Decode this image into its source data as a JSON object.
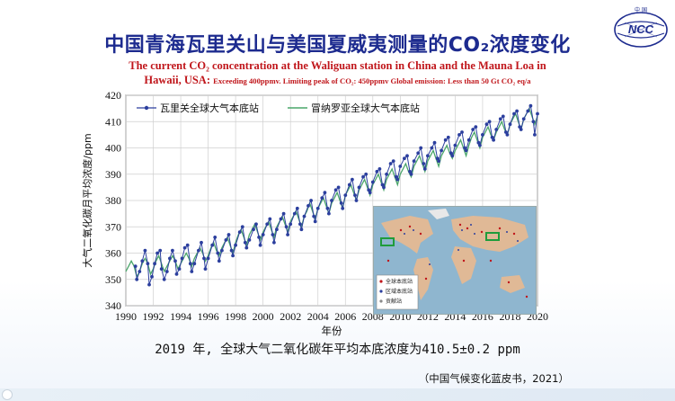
{
  "slide": {
    "title": "中国青海瓦里关山与美国夏威夷测量的CO₂浓度变化",
    "subtitle_line1": "The current  CO₂  concentration at the Waliguan station in China and the Mauna Loa in",
    "subtitle_line2_main": "Hawaii, USA: ",
    "subtitle_line2_small": "Exceeding 400ppmv. Limiting peak of CO₂: 450ppmv Global emission: Less than 50 Gt CO₂ eq/a",
    "caption": "2019 年, 全球大气二氧化碳年平均本底浓度为410.5±0.2 ppm",
    "source": "（中国气候变化蓝皮书，2021）",
    "logo_text": "NCC",
    "logo_top_text": "中  国",
    "colors": {
      "title": "#1d2b8f",
      "subtitle": "#c0161b",
      "waliguan": "#2c3f9e",
      "maunaloa": "#4aa56a"
    }
  },
  "map_inset": {
    "legend": [
      "全球本底站",
      "区域本底站",
      "贡献站"
    ]
  },
  "chart_data": {
    "type": "line",
    "xlabel": "年份",
    "ylabel": "大气二氧化碳月平均浓度/ppm",
    "xlim": [
      1990,
      2020
    ],
    "ylim": [
      340,
      420
    ],
    "xticks": [
      "1990",
      "1992",
      "1994",
      "1996",
      "1998",
      "2000",
      "2002",
      "2004",
      "2006",
      "2008",
      "2010",
      "2012",
      "2014",
      "2016",
      "2018",
      "2020"
    ],
    "yticks": [
      "340",
      "350",
      "360",
      "370",
      "380",
      "390",
      "400",
      "410",
      "420"
    ],
    "grid": true,
    "legend_position": "top-left",
    "series": [
      {
        "name": "瓦里关全球大气本底站",
        "style": "line-with-dots",
        "x": [
          1990.7,
          1990.8,
          1991.0,
          1991.2,
          1991.4,
          1991.6,
          1991.7,
          1991.9,
          1992.1,
          1992.3,
          1992.5,
          1992.6,
          1992.8,
          1993.0,
          1993.2,
          1993.4,
          1993.6,
          1993.7,
          1993.9,
          1994.1,
          1994.3,
          1994.5,
          1994.7,
          1994.8,
          1995.0,
          1995.3,
          1995.5,
          1995.7,
          1995.8,
          1996.0,
          1996.3,
          1996.5,
          1996.7,
          1996.8,
          1997.0,
          1997.3,
          1997.5,
          1997.7,
          1997.8,
          1998.0,
          1998.3,
          1998.5,
          1998.7,
          1998.8,
          1999.0,
          1999.3,
          1999.5,
          1999.7,
          1999.8,
          2000.0,
          2000.3,
          2000.5,
          2000.7,
          2000.8,
          2001.0,
          2001.3,
          2001.5,
          2001.7,
          2001.8,
          2002.0,
          2002.3,
          2002.5,
          2002.7,
          2002.8,
          2003.0,
          2003.3,
          2003.5,
          2003.7,
          2003.8,
          2004.0,
          2004.3,
          2004.5,
          2004.7,
          2004.8,
          2005.0,
          2005.3,
          2005.5,
          2005.7,
          2005.8,
          2006.0,
          2006.3,
          2006.5,
          2006.7,
          2006.8,
          2007.0,
          2007.3,
          2007.5,
          2007.7,
          2007.8,
          2008.0,
          2008.3,
          2008.5,
          2008.7,
          2008.8,
          2009.0,
          2009.3,
          2009.5,
          2009.7,
          2009.8,
          2010.0,
          2010.3,
          2010.5,
          2010.7,
          2010.8,
          2011.0,
          2011.3,
          2011.5,
          2011.7,
          2011.8,
          2012.0,
          2012.3,
          2012.5,
          2012.7,
          2012.8,
          2013.0,
          2013.3,
          2013.5,
          2013.7,
          2013.8,
          2014.0,
          2014.3,
          2014.5,
          2014.7,
          2014.8,
          2015.0,
          2015.3,
          2015.5,
          2015.7,
          2015.8,
          2016.0,
          2016.3,
          2016.5,
          2016.7,
          2016.8,
          2017.0,
          2017.3,
          2017.5,
          2017.7,
          2017.8,
          2018.0,
          2018.3,
          2018.5,
          2018.7,
          2018.8,
          2019.0,
          2019.3,
          2019.5,
          2019.7,
          2019.8,
          2020.0
        ],
        "y": [
          355,
          350,
          353,
          357,
          361,
          356,
          348,
          351,
          356,
          360,
          361,
          354,
          350,
          353,
          358,
          361,
          357,
          352,
          354,
          358,
          362,
          363,
          356,
          353,
          356,
          361,
          364,
          358,
          354,
          358,
          363,
          366,
          360,
          357,
          361,
          365,
          367,
          361,
          359,
          363,
          368,
          370,
          364,
          362,
          365,
          369,
          371,
          366,
          363,
          367,
          371,
          373,
          367,
          364,
          369,
          373,
          375,
          370,
          367,
          371,
          375,
          377,
          371,
          369,
          374,
          378,
          380,
          374,
          372,
          377,
          381,
          383,
          377,
          375,
          380,
          384,
          385,
          379,
          377,
          382,
          386,
          388,
          382,
          380,
          385,
          389,
          390,
          384,
          383,
          387,
          391,
          392,
          386,
          385,
          390,
          394,
          395,
          389,
          388,
          393,
          396,
          397,
          391,
          390,
          395,
          398,
          400,
          394,
          392,
          397,
          400,
          402,
          396,
          395,
          399,
          403,
          404,
          398,
          397,
          401,
          405,
          406,
          400,
          399,
          403,
          407,
          408,
          402,
          401,
          405,
          409,
          410,
          404,
          403,
          407,
          411,
          412,
          406,
          405,
          409,
          413,
          414,
          408,
          407,
          411,
          414,
          416,
          410,
          405,
          413
        ]
      },
      {
        "name": "冒纳罗亚全球大气本底站",
        "style": "line",
        "x": [
          1990.0,
          1990.2,
          1990.4,
          1990.6,
          1990.8,
          1991.0,
          1991.2,
          1991.4,
          1991.6,
          1991.8,
          1992.0,
          1992.2,
          1992.4,
          1992.6,
          1992.8,
          1993.0,
          1993.2,
          1993.4,
          1993.6,
          1993.8,
          1994.0,
          1994.2,
          1994.4,
          1994.6,
          1994.8,
          1995.0,
          1995.2,
          1995.4,
          1995.6,
          1995.8,
          1996.0,
          1996.2,
          1996.4,
          1996.6,
          1996.8,
          1997.0,
          1997.2,
          1997.4,
          1997.6,
          1997.8,
          1998.0,
          1998.2,
          1998.4,
          1998.6,
          1998.8,
          1999.0,
          1999.2,
          1999.4,
          1999.6,
          1999.8,
          2000.0,
          2000.2,
          2000.4,
          2000.6,
          2000.8,
          2001.0,
          2001.2,
          2001.4,
          2001.6,
          2001.8,
          2002.0,
          2002.2,
          2002.4,
          2002.6,
          2002.8,
          2003.0,
          2003.2,
          2003.4,
          2003.6,
          2003.8,
          2004.0,
          2004.2,
          2004.4,
          2004.6,
          2004.8,
          2005.0,
          2005.2,
          2005.4,
          2005.6,
          2005.8,
          2006.0,
          2006.2,
          2006.4,
          2006.6,
          2006.8,
          2007.0,
          2007.2,
          2007.4,
          2007.6,
          2007.8,
          2008.0,
          2008.2,
          2008.4,
          2008.6,
          2008.8,
          2009.0,
          2009.2,
          2009.4,
          2009.6,
          2009.8,
          2010.0,
          2010.2,
          2010.4,
          2010.6,
          2010.8,
          2011.0,
          2011.2,
          2011.4,
          2011.6,
          2011.8,
          2012.0,
          2012.2,
          2012.4,
          2012.6,
          2012.8,
          2013.0,
          2013.2,
          2013.4,
          2013.6,
          2013.8,
          2014.0,
          2014.2,
          2014.4,
          2014.6,
          2014.8,
          2015.0,
          2015.2,
          2015.4,
          2015.6,
          2015.8,
          2016.0,
          2016.2,
          2016.4,
          2016.6,
          2016.8,
          2017.0,
          2017.2,
          2017.4,
          2017.6,
          2017.8,
          2018.0,
          2018.2,
          2018.4,
          2018.6,
          2018.8,
          2019.0,
          2019.2,
          2019.4,
          2019.6,
          2019.8,
          2020.0
        ],
        "y": [
          353,
          355,
          357,
          355,
          351,
          353,
          356,
          358,
          356,
          352,
          354,
          357,
          359,
          356,
          353,
          355,
          357,
          359,
          357,
          354,
          356,
          358,
          360,
          358,
          355,
          358,
          360,
          362,
          360,
          357,
          359,
          362,
          364,
          361,
          359,
          362,
          364,
          366,
          363,
          360,
          364,
          367,
          369,
          366,
          363,
          367,
          369,
          371,
          368,
          365,
          368,
          370,
          372,
          369,
          366,
          370,
          372,
          374,
          371,
          368,
          372,
          374,
          376,
          373,
          370,
          374,
          376,
          379,
          376,
          373,
          377,
          379,
          381,
          378,
          375,
          379,
          381,
          383,
          380,
          377,
          382,
          384,
          386,
          383,
          380,
          384,
          386,
          388,
          385,
          382,
          386,
          388,
          390,
          387,
          384,
          388,
          390,
          392,
          389,
          386,
          390,
          392,
          394,
          391,
          389,
          393,
          395,
          397,
          394,
          391,
          395,
          397,
          399,
          396,
          393,
          397,
          399,
          401,
          398,
          396,
          399,
          401,
          403,
          400,
          397,
          401,
          404,
          406,
          403,
          400,
          404,
          406,
          408,
          405,
          403,
          406,
          408,
          410,
          407,
          405,
          409,
          411,
          413,
          410,
          407,
          411,
          413,
          415,
          412,
          409,
          412
        ]
      }
    ]
  }
}
